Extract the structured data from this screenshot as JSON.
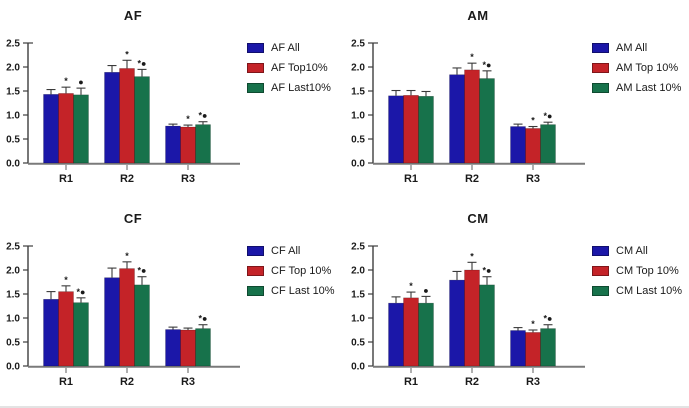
{
  "figure": {
    "description_titles": [
      "AF",
      "AM",
      "CF",
      "CM"
    ]
  },
  "palette": {
    "all_blue": "#1b17a8",
    "top_red": "#c42328",
    "last_green": "#17724b",
    "axis": "#3d3d3d",
    "baseline": "#7a7a7a",
    "error_bar": "#3a3a3a"
  },
  "chart_data": [
    {
      "type": "bar",
      "title": "AF",
      "categories": [
        "R1",
        "R2",
        "R3"
      ],
      "ylim": [
        0,
        2.5
      ],
      "yticks": [
        "0.0",
        "0.5",
        "1.0",
        "1.5",
        "2.0",
        "2.5"
      ],
      "grid": false,
      "legend_position": "right",
      "series": [
        {
          "name": "AF All",
          "color": "#1b17a8",
          "values": [
            1.43,
            1.89,
            0.77
          ],
          "errors": [
            0.1,
            0.14,
            0.04
          ],
          "annotations": [
            "",
            "",
            ""
          ]
        },
        {
          "name": "AF Top10%",
          "color": "#c42328",
          "values": [
            1.45,
            1.97,
            0.75
          ],
          "errors": [
            0.13,
            0.17,
            0.04
          ],
          "annotations": [
            "*",
            "*",
            "*"
          ]
        },
        {
          "name": "AF Last10%",
          "color": "#17724b",
          "values": [
            1.42,
            1.8,
            0.8
          ],
          "errors": [
            0.14,
            0.15,
            0.06
          ],
          "annotations": [
            "●",
            "*●",
            "*●"
          ]
        }
      ]
    },
    {
      "type": "bar",
      "title": "AM",
      "categories": [
        "R1",
        "R2",
        "R3"
      ],
      "ylim": [
        0,
        2.5
      ],
      "yticks": [
        "0.0",
        "0.5",
        "1.0",
        "1.5",
        "2.0",
        "2.5"
      ],
      "grid": false,
      "legend_position": "right",
      "series": [
        {
          "name": "AM All",
          "color": "#1b17a8",
          "values": [
            1.4,
            1.84,
            0.76
          ],
          "errors": [
            0.11,
            0.14,
            0.05
          ],
          "annotations": [
            "",
            "",
            ""
          ]
        },
        {
          "name": "AM Top 10%",
          "color": "#c42328",
          "values": [
            1.41,
            1.94,
            0.72
          ],
          "errors": [
            0.1,
            0.14,
            0.04
          ],
          "annotations": [
            "",
            "*",
            "*"
          ]
        },
        {
          "name": "AM Last 10%",
          "color": "#17724b",
          "values": [
            1.39,
            1.76,
            0.8
          ],
          "errors": [
            0.1,
            0.16,
            0.05
          ],
          "annotations": [
            "",
            "*●",
            "*●"
          ]
        }
      ]
    },
    {
      "type": "bar",
      "title": "CF",
      "categories": [
        "R1",
        "R2",
        "R3"
      ],
      "ylim": [
        0,
        2.5
      ],
      "yticks": [
        "0.0",
        "0.5",
        "1.0",
        "1.5",
        "2.0",
        "2.5"
      ],
      "grid": false,
      "legend_position": "right",
      "series": [
        {
          "name": "CF All",
          "color": "#1b17a8",
          "values": [
            1.39,
            1.84,
            0.76
          ],
          "errors": [
            0.16,
            0.2,
            0.05
          ],
          "annotations": [
            "",
            "",
            ""
          ]
        },
        {
          "name": "CF Top 10%",
          "color": "#c42328",
          "values": [
            1.55,
            2.03,
            0.75
          ],
          "errors": [
            0.12,
            0.14,
            0.04
          ],
          "annotations": [
            "*",
            "*",
            ""
          ]
        },
        {
          "name": "CF Last 10%",
          "color": "#17724b",
          "values": [
            1.32,
            1.69,
            0.78
          ],
          "errors": [
            0.1,
            0.17,
            0.08
          ],
          "annotations": [
            "*●",
            "*●",
            "*●"
          ]
        }
      ]
    },
    {
      "type": "bar",
      "title": "CM",
      "categories": [
        "R1",
        "R2",
        "R3"
      ],
      "ylim": [
        0,
        2.5
      ],
      "yticks": [
        "0.0",
        "0.5",
        "1.0",
        "1.5",
        "2.0",
        "2.5"
      ],
      "grid": false,
      "legend_position": "right",
      "series": [
        {
          "name": "CM All",
          "color": "#1b17a8",
          "values": [
            1.31,
            1.79,
            0.74
          ],
          "errors": [
            0.13,
            0.18,
            0.06
          ],
          "annotations": [
            "",
            "",
            ""
          ]
        },
        {
          "name": "CM Top 10%",
          "color": "#c42328",
          "values": [
            1.42,
            2.0,
            0.7
          ],
          "errors": [
            0.12,
            0.16,
            0.05
          ],
          "annotations": [
            "*",
            "*",
            "*"
          ]
        },
        {
          "name": "CM Last 10%",
          "color": "#17724b",
          "values": [
            1.31,
            1.69,
            0.78
          ],
          "errors": [
            0.14,
            0.17,
            0.08
          ],
          "annotations": [
            "●",
            "*●",
            "*●"
          ]
        }
      ]
    }
  ]
}
